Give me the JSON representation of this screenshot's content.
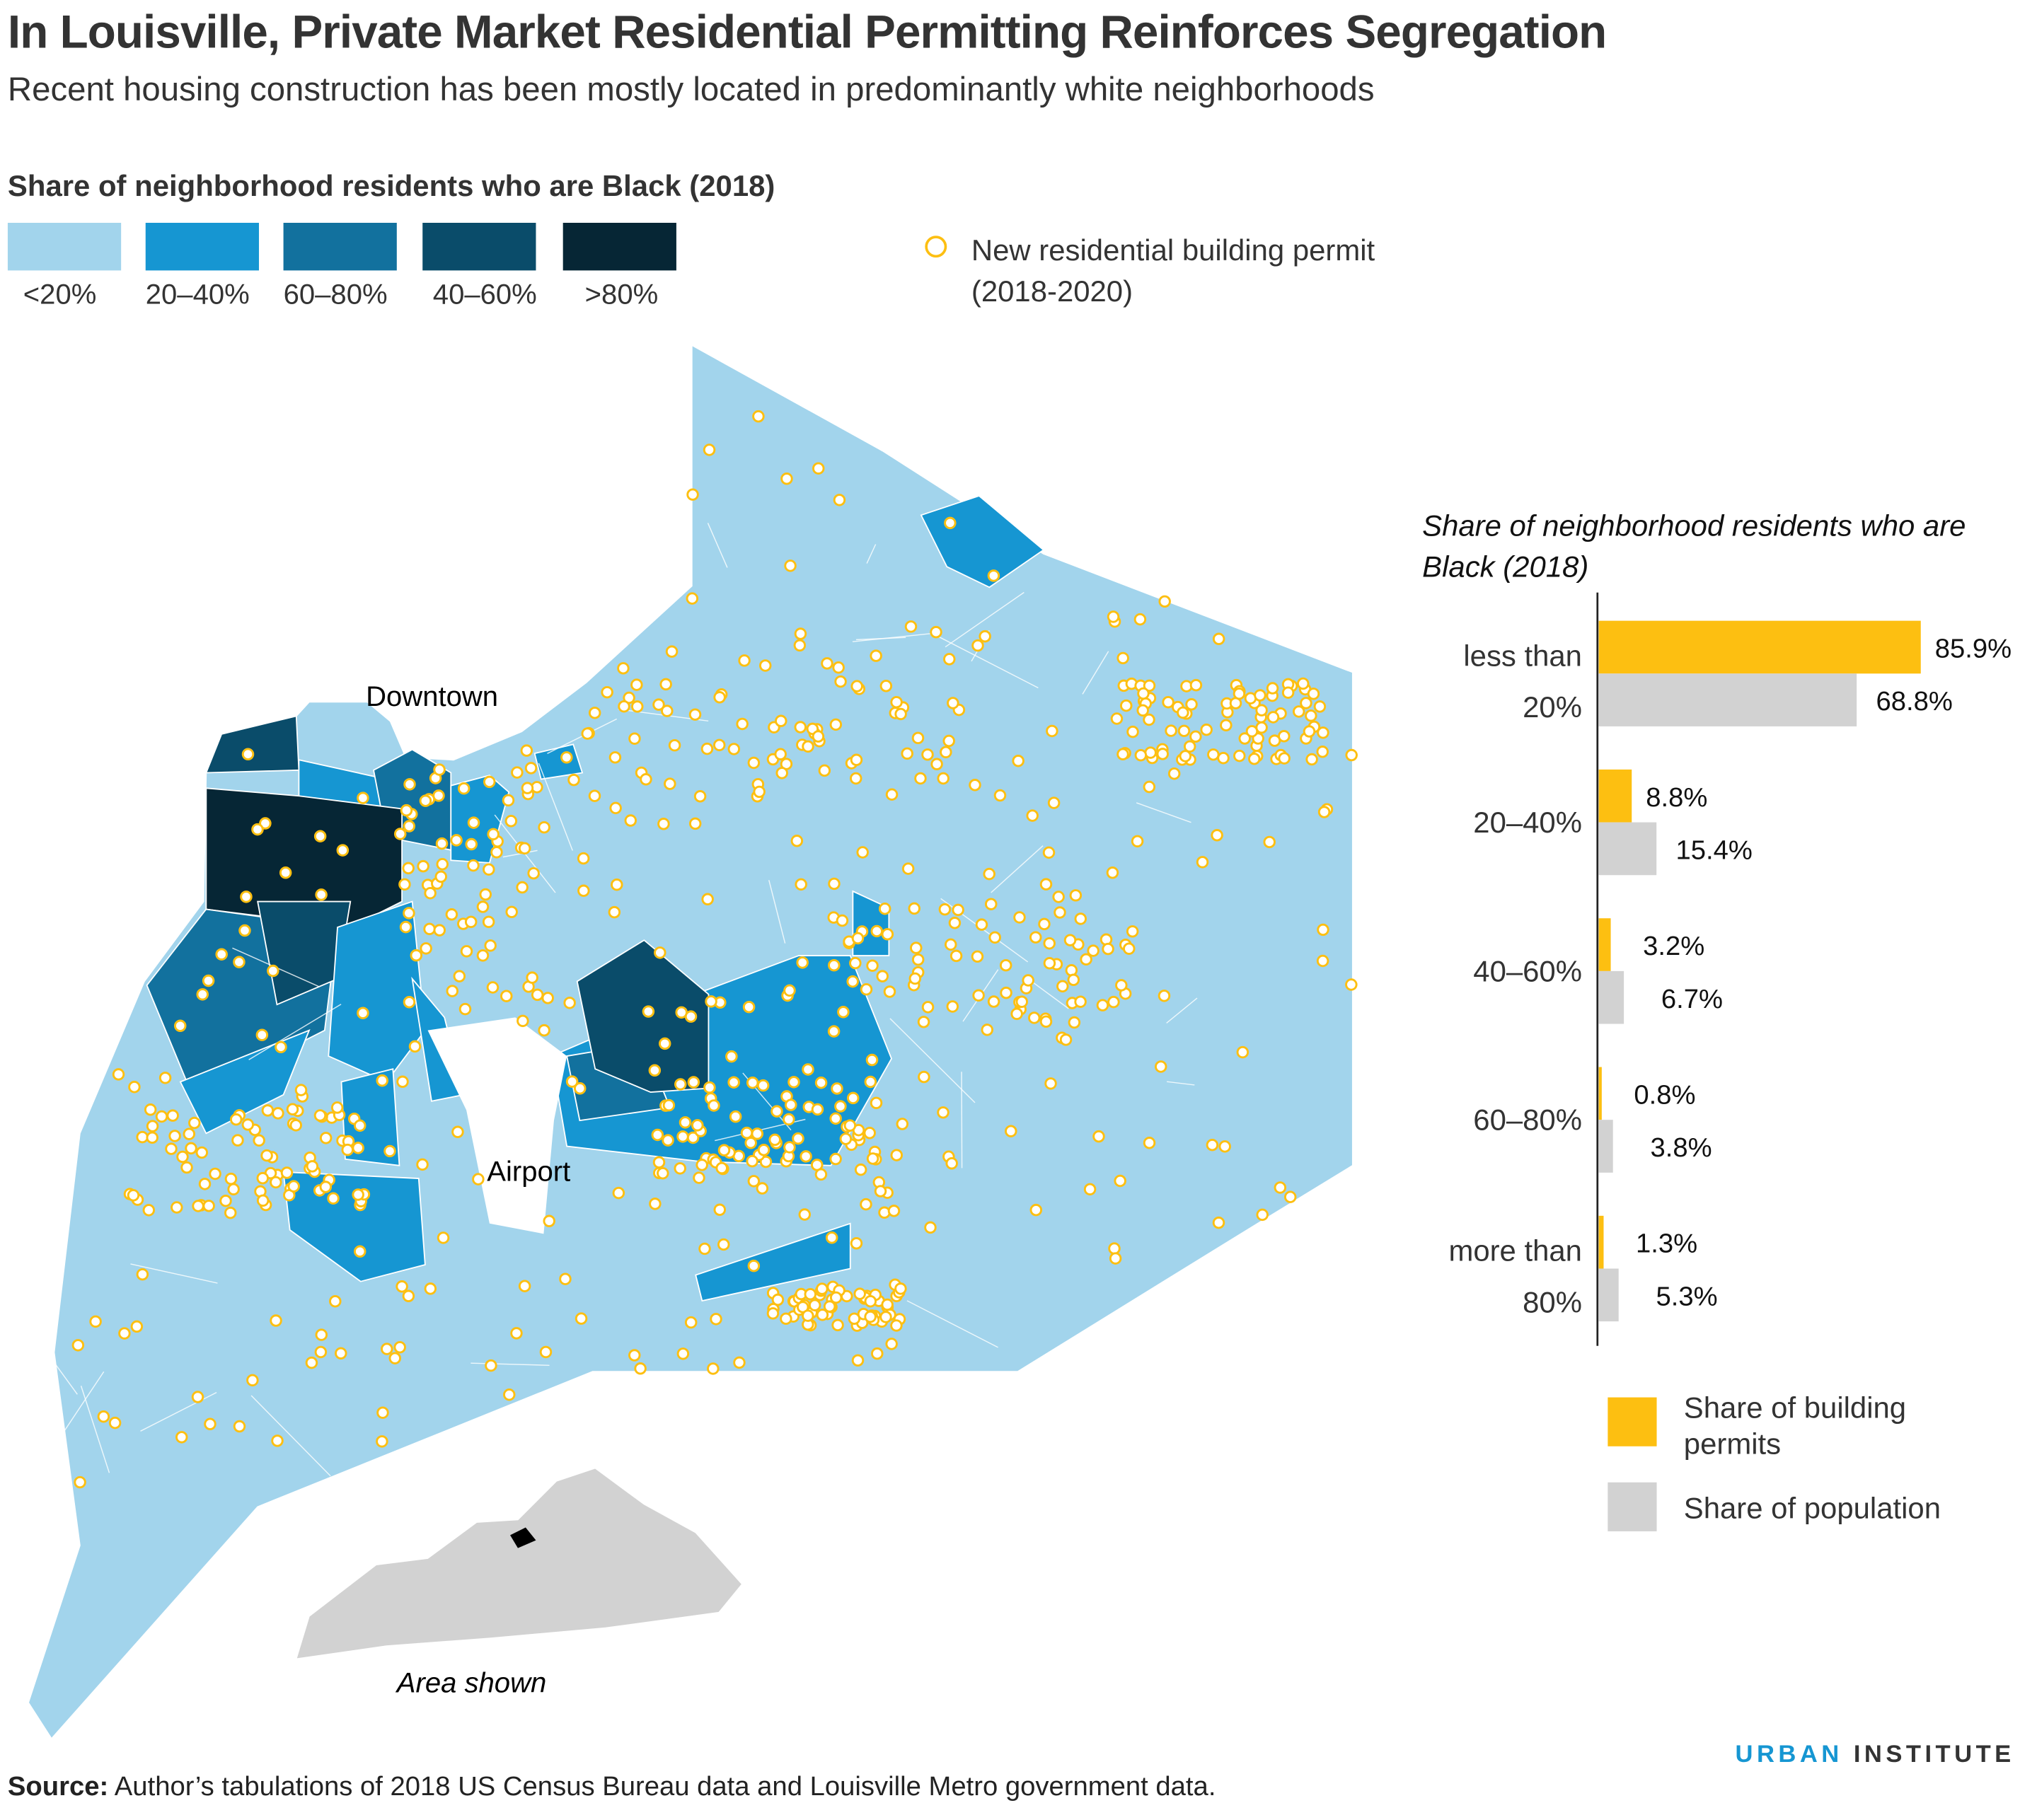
{
  "title": "In Louisville, Private Market Residential Permitting Reinforces Segregation",
  "subtitle": "Recent housing construction has been mostly located in predominantly white neighborhoods",
  "map_legend": {
    "title": "Share of neighborhood residents who are Black (2018)",
    "items": [
      {
        "label": "<20%",
        "color": "#a2d4ec"
      },
      {
        "label": "20–40%",
        "color": "#1696d2"
      },
      {
        "label": "60–80%",
        "color": "#12719e"
      },
      {
        "label": "40–60%",
        "color": "#0a4c6a"
      },
      {
        "label": ">80%",
        "color": "#062635"
      }
    ],
    "permit_label": "New residential building permit (2018-2020)",
    "permit_color": "#fdbf11"
  },
  "map_labels": {
    "downtown": "Downtown",
    "airport": "Airport",
    "inset": "Area shown"
  },
  "chart_data": {
    "type": "bar",
    "orientation": "horizontal",
    "title": "Share of neighborhood residents who are Black (2018)",
    "categories": [
      [
        "less than",
        "20%"
      ],
      [
        "20–40%"
      ],
      [
        "40–60%"
      ],
      [
        "60–80%"
      ],
      [
        "more than",
        "80%"
      ]
    ],
    "series": [
      {
        "name": "Share of building permits",
        "color": "#fdbf11",
        "values": [
          85.9,
          8.8,
          3.2,
          0.8,
          1.3
        ],
        "labels": [
          "85.9%",
          "8.8%",
          "3.2%",
          "0.8%",
          "1.3%"
        ]
      },
      {
        "name": "Share of population",
        "color": "#d2d2d2",
        "values": [
          68.8,
          15.4,
          6.7,
          3.8,
          5.3
        ],
        "labels": [
          "68.8%",
          "15.4%",
          "6.7%",
          "3.8%",
          "5.3%"
        ]
      }
    ],
    "legend_position": "bottom",
    "grid": false
  },
  "logo": {
    "part1": "URBAN",
    "part2": "INSTITUTE",
    "color1": "#1696d2"
  },
  "source": {
    "label": "Source:",
    "text": " Author’s tabulations of 2018 US Census Bureau data and Louisville Metro government data."
  }
}
